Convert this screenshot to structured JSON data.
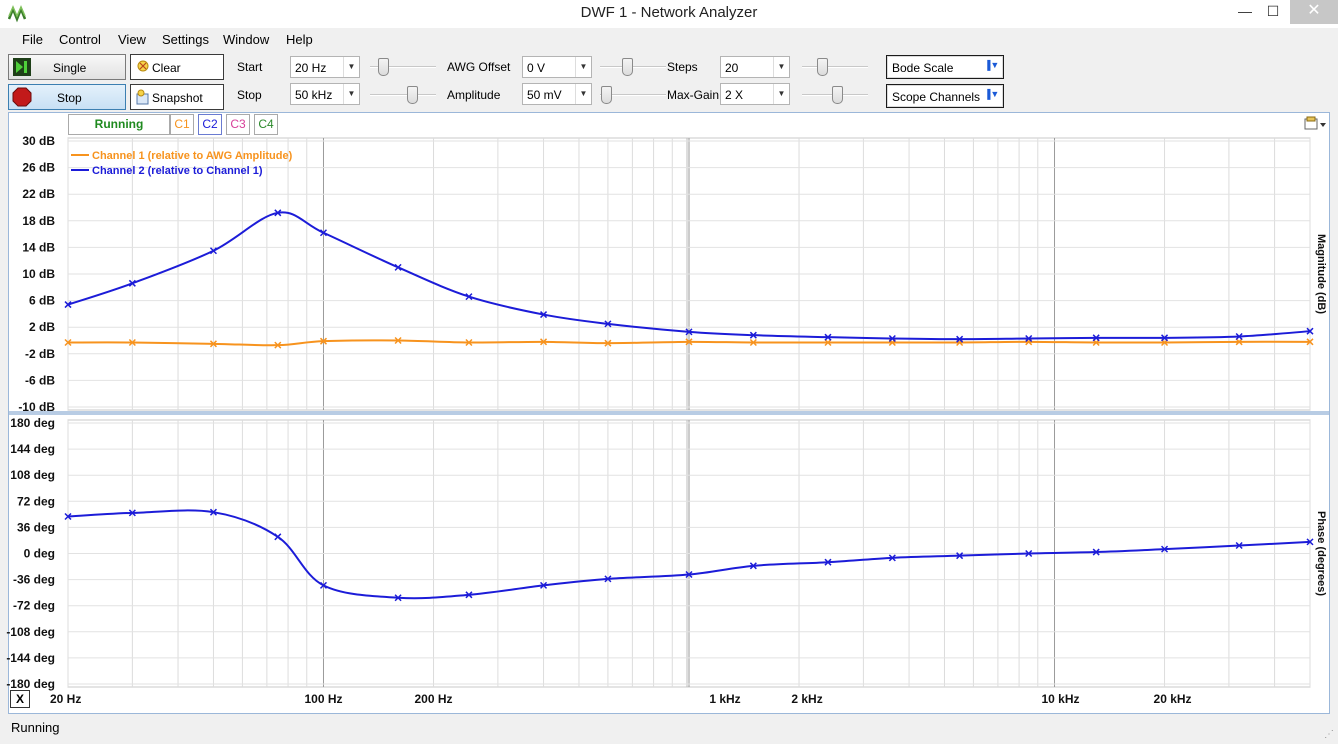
{
  "window": {
    "title": "DWF 1 - Network Analyzer",
    "minimize": "—",
    "maximize": "☐",
    "close": "✕",
    "app_icon": "waveforms-logo-icon"
  },
  "menu": [
    "File",
    "Control",
    "View",
    "Settings",
    "Window",
    "Help"
  ],
  "toolbar": {
    "single_label": "Single",
    "stop_label": "Stop",
    "clear_label": "Clear",
    "snapshot_label": "Snapshot",
    "start_label": "Start",
    "start_value": "20 Hz",
    "stop_freq_label": "Stop",
    "stop_value": "50 kHz",
    "awg_offset_label": "AWG Offset",
    "awg_offset_value": "0 V",
    "amplitude_label": "Amplitude",
    "amplitude_value": "50 mV",
    "steps_label": "Steps",
    "steps_value": "20",
    "max_gain_label": "Max-Gain",
    "max_gain_value": "2 X",
    "bode_scale_label": "Bode Scale",
    "scope_channels_label": "Scope Channels"
  },
  "tabs": {
    "running": "Running",
    "c1": "C1",
    "c2": "C2",
    "c3": "C3",
    "c4": "C4"
  },
  "colors": {
    "c1": "#f7931e",
    "c2": "#1c1cd8",
    "c3": "#d8409a",
    "c4": "#2c8a2c",
    "running": "#1f8a1f",
    "accent": "#1c1cd8"
  },
  "status": {
    "text": "Running"
  },
  "x_button": "X",
  "chart_data": [
    {
      "type": "line",
      "ylabel": "Magnitude (dB)",
      "x_scale": "log",
      "xlim": [
        20,
        50000
      ],
      "ylim": [
        -10,
        30
      ],
      "y_ticks": [
        "30 dB",
        "26 dB",
        "22 dB",
        "18 dB",
        "14 dB",
        "10 dB",
        "6 dB",
        "2 dB",
        "-2 dB",
        "-6 dB",
        "-10 dB"
      ],
      "x_tick_labels": [
        "20 Hz",
        "100 Hz",
        "200 Hz",
        "1 kHz",
        "2 kHz",
        "10 kHz",
        "20 kHz"
      ],
      "legend_placement": "top-left",
      "grid": true,
      "series": [
        {
          "name": "Channel 1 (relative to AWG Amplitude)",
          "color": "#f7931e",
          "x": [
            20,
            30,
            50,
            75,
            100,
            160,
            250,
            400,
            600,
            1000,
            1500,
            2400,
            3600,
            5500,
            8500,
            13000,
            20000,
            32000,
            50000
          ],
          "y": [
            -0.3,
            -0.3,
            -0.5,
            -0.7,
            -0.1,
            0.0,
            -0.3,
            -0.2,
            -0.4,
            -0.2,
            -0.3,
            -0.3,
            -0.3,
            -0.3,
            -0.2,
            -0.3,
            -0.3,
            -0.2,
            -0.2
          ]
        },
        {
          "name": "Channel 2 (relative to Channel 1)",
          "color": "#1c1cd8",
          "x": [
            20,
            30,
            50,
            75,
            100,
            160,
            250,
            400,
            600,
            1000,
            1500,
            2400,
            3600,
            5500,
            8500,
            13000,
            20000,
            32000,
            50000
          ],
          "y": [
            5.4,
            8.6,
            13.5,
            19.2,
            16.2,
            11.0,
            6.6,
            3.9,
            2.5,
            1.3,
            0.8,
            0.5,
            0.3,
            0.2,
            0.3,
            0.4,
            0.4,
            0.6,
            1.4
          ]
        }
      ]
    },
    {
      "type": "line",
      "ylabel": "Phase (degrees)",
      "x_scale": "log",
      "xlim": [
        20,
        50000
      ],
      "ylim": [
        -180,
        180
      ],
      "y_ticks": [
        "180 deg",
        "144 deg",
        "108 deg",
        "72 deg",
        "36 deg",
        "0 deg",
        "-36 deg",
        "-72 deg",
        "-108 deg",
        "-144 deg",
        "-180 deg"
      ],
      "x_tick_labels": [
        "20 Hz",
        "100 Hz",
        "200 Hz",
        "1 kHz",
        "2 kHz",
        "10 kHz",
        "20 kHz"
      ],
      "grid": true,
      "series": [
        {
          "name": "Channel 2 (relative to Channel 1)",
          "color": "#1c1cd8",
          "x": [
            20,
            30,
            50,
            75,
            100,
            160,
            250,
            400,
            600,
            1000,
            1500,
            2400,
            3600,
            5500,
            8500,
            13000,
            20000,
            32000,
            50000
          ],
          "y": [
            51,
            56,
            57,
            23,
            -44,
            -61,
            -57,
            -44,
            -35,
            -29,
            -17,
            -12,
            -6,
            -3,
            0,
            2,
            6,
            11,
            16
          ]
        }
      ]
    }
  ]
}
